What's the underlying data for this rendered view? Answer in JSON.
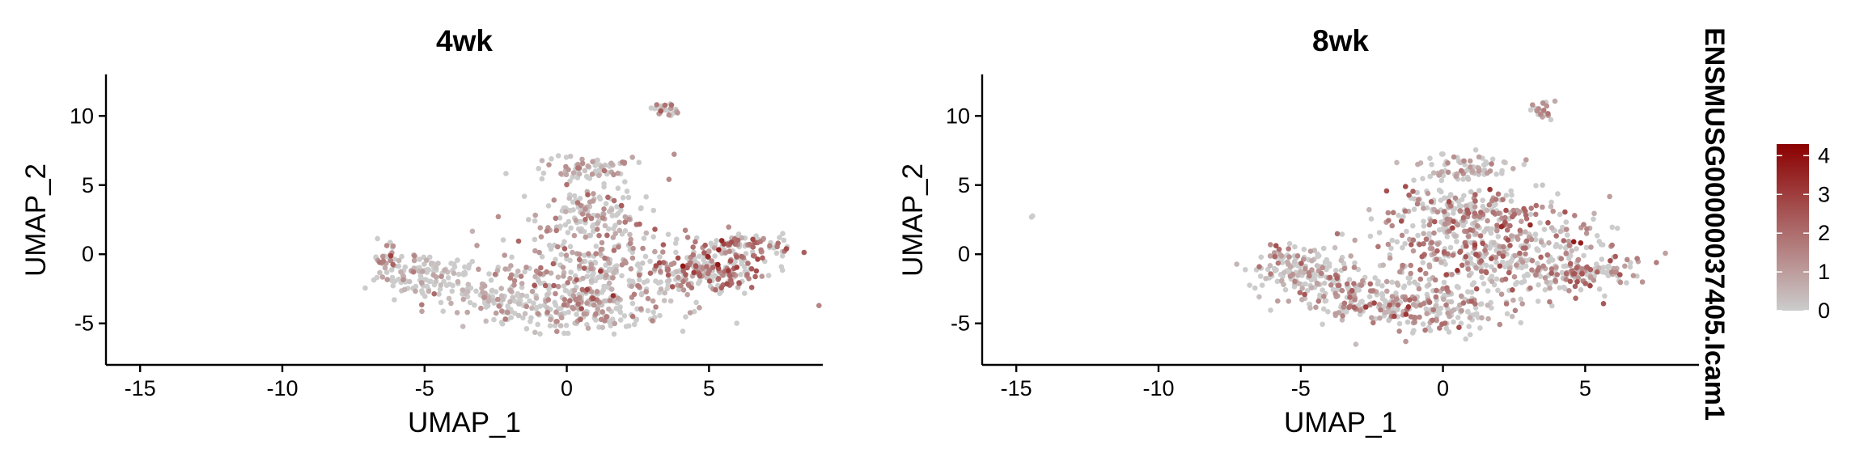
{
  "chart_data": [
    {
      "type": "scatter",
      "title": "4wk",
      "xlabel": "UMAP_1",
      "ylabel": "UMAP_2",
      "xlim": [
        -16.2,
        9.0
      ],
      "ylim": [
        -8.0,
        13.0
      ],
      "x_ticks": [
        -15,
        -10,
        -5,
        0,
        5
      ],
      "y_ticks": [
        -5,
        0,
        5,
        10
      ],
      "grid": false,
      "point_colors": [
        "#cccccc",
        "#8b0000"
      ],
      "clusters": [
        {
          "region": "right arm tip",
          "center": [
            5.2,
            -1.6
          ],
          "approx_expression": 3.5
        },
        {
          "region": "central body",
          "center": [
            0.6,
            -1.0
          ],
          "approx_expression": 1.5
        },
        {
          "region": "upper lobe",
          "center": [
            0.8,
            5.8
          ],
          "approx_expression": 1.2
        },
        {
          "region": "left arm",
          "center": [
            -4.5,
            -1.5
          ],
          "approx_expression": 0.8
        },
        {
          "region": "isolated island",
          "center": [
            3.4,
            10.5
          ],
          "approx_expression": 1.5
        }
      ]
    },
    {
      "type": "scatter",
      "title": "8wk",
      "xlabel": "UMAP_1",
      "ylabel": "UMAP_2",
      "xlim": [
        -16.2,
        9.0
      ],
      "ylim": [
        -8.0,
        13.0
      ],
      "x_ticks": [
        -15,
        -10,
        -5,
        0,
        5
      ],
      "y_ticks": [
        -5,
        0,
        5,
        10
      ],
      "grid": false,
      "point_colors": [
        "#cccccc",
        "#8b0000"
      ],
      "clusters": [
        {
          "region": "central body",
          "center": [
            1.5,
            0.5
          ],
          "approx_expression": 1.8
        },
        {
          "region": "lower body",
          "center": [
            -0.5,
            -3.5
          ],
          "approx_expression": 1.2
        },
        {
          "region": "right arm",
          "center": [
            4.8,
            -1.5
          ],
          "approx_expression": 1.5
        },
        {
          "region": "left arm",
          "center": [
            -4.8,
            -1.3
          ],
          "approx_expression": 1.0
        },
        {
          "region": "upper lobe",
          "center": [
            0.8,
            6.0
          ],
          "approx_expression": 1.0
        },
        {
          "region": "isolated island",
          "center": [
            3.5,
            10.4
          ],
          "approx_expression": 1.5
        },
        {
          "region": "outlier",
          "center": [
            -14.5,
            2.7
          ],
          "approx_expression": 0
        }
      ]
    }
  ],
  "legend": {
    "title": "ENSMUSG00000037405.Icam1",
    "ticks": [
      "4",
      "3",
      "2",
      "1",
      "0"
    ],
    "min": 0,
    "max": 4.3,
    "color_low": "#cccccc",
    "color_high": "#8b0000",
    "placement": "right"
  }
}
